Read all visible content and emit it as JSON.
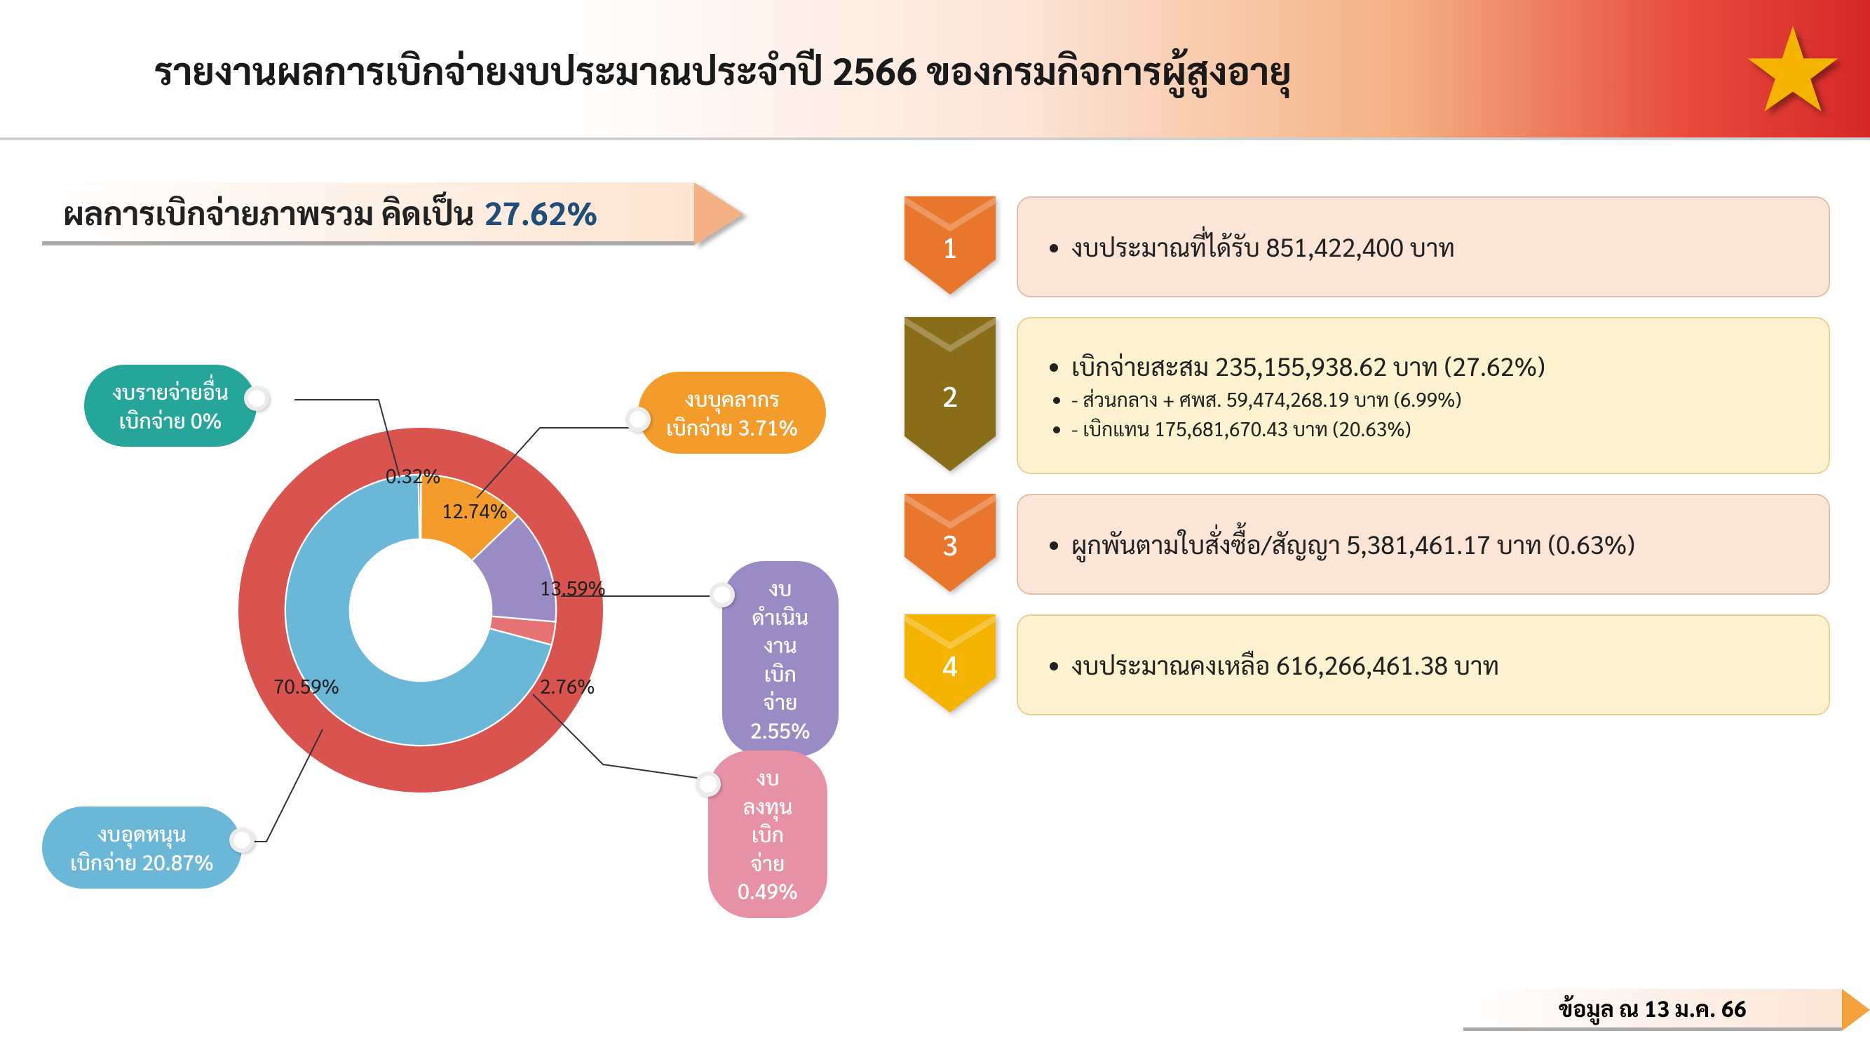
{
  "header": {
    "title": "รายงานผลการเบิกจ่ายงบประมาณประจำปี 2566 ของกรมกิจการผู้สูงอายุ",
    "star_color": "#f5b301",
    "bg_gradient": [
      "#ffffff",
      "#fce4d6",
      "#e74c3c"
    ]
  },
  "summary": {
    "label": "ผลการเบิกจ่ายภาพรวม คิดเป็น",
    "percent": "27.62%",
    "percent_color": "#1f4e79",
    "arrow_color": "#f4b183"
  },
  "chart": {
    "type": "donut",
    "background_ring_color": "#d9534f",
    "inner_bg": "#ffffff",
    "slices": [
      {
        "name": "งบรายจ่ายอื่น",
        "pct": 0.32,
        "color": "#26a69a",
        "callout_line1": "งบรายจ่ายอื่น",
        "callout_line2": "เบิกจ่าย 0%"
      },
      {
        "name": "งบบุคลากร",
        "pct": 12.74,
        "color": "#f39c2c",
        "callout_line1": "งบบุคลากร",
        "callout_line2": "เบิกจ่าย 3.71%"
      },
      {
        "name": "งบดำเนินงาน",
        "pct": 13.59,
        "color": "#9b8bc4",
        "callout_line1": "งบดำเนินงาน",
        "callout_line2": "เบิกจ่าย 2.55%"
      },
      {
        "name": "งบลงทุน",
        "pct": 2.76,
        "color": "#e57373",
        "callout_line1": "งบลงทุน",
        "callout_line2": "เบิกจ่าย 0.49%"
      },
      {
        "name": "งบอุดหนุน",
        "pct": 70.59,
        "color": "#6ab7d8",
        "callout_line1": "งบอุดหนุน",
        "callout_line2": "เบิกจ่าย 20.87%"
      }
    ],
    "label_fontsize": 28,
    "callout_fontsize": 30
  },
  "boxes": [
    {
      "num": "1",
      "chev_color": "#e8762c",
      "bg": "peach",
      "lines": [
        {
          "text": "งบประมาณที่ได้รับ 851,422,400 บาท",
          "cls": ""
        }
      ]
    },
    {
      "num": "2",
      "chev_color": "#8a6d18",
      "bg": "cream",
      "lines": [
        {
          "text": "เบิกจ่ายสะสม   235,155,938.62 บาท (27.62%)",
          "cls": ""
        },
        {
          "text": "- ส่วนกลาง + ศพส.        59,474,268.19 บาท  (6.99%)",
          "cls": "sub"
        },
        {
          "text": "- เบิกแทน                    175,681,670.43 บาท  (20.63%)",
          "cls": "sub"
        }
      ]
    },
    {
      "num": "3",
      "chev_color": "#e8762c",
      "bg": "peach",
      "lines": [
        {
          "text": "ผูกพันตามใบสั่งซื้อ/สัญญา 5,381,461.17 บาท (0.63%)",
          "cls": ""
        }
      ]
    },
    {
      "num": "4",
      "chev_color": "#f5b301",
      "bg": "cream",
      "lines": [
        {
          "text": "งบประมาณคงเหลือ  616,266,461.38 บาท",
          "cls": ""
        }
      ]
    }
  ],
  "footer": {
    "text": "ข้อมูล ณ 13 ม.ค. 66",
    "arrow_color": "#f4a23c"
  }
}
